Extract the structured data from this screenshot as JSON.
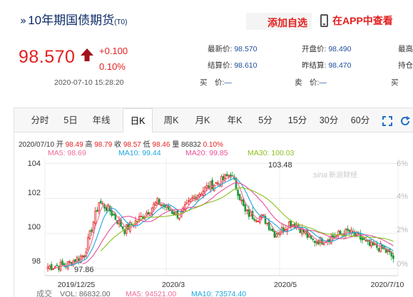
{
  "header": {
    "title": "10年期国债期货",
    "code": "(T0)",
    "add_favorite": "添加自选",
    "app_view": "在APP中查看"
  },
  "quote": {
    "price": "98.570",
    "change": "+0.100",
    "change_pct": "0.10%",
    "timestamp": "2020-07-10 15:28:20",
    "latest_label": "最新价:",
    "latest_value": "98.570",
    "settle_label": "结算价:",
    "settle_value": "98.610",
    "open_label": "开盘价:",
    "open_value": "98.490",
    "prev_settle_label": "昨结算:",
    "prev_settle_value": "98.470",
    "bid_label": "买　价:",
    "bid_value": "—",
    "ask_label": "卖　价:",
    "ask_value": "—",
    "high_label": "最高",
    "hold_label": "持仓",
    "buy_vol_label": "买",
    "sell_vol_label": "卖",
    "accent": "#e31f1f"
  },
  "tabs": [
    {
      "label": "分时",
      "active": false
    },
    {
      "label": "5日",
      "active": false
    },
    {
      "label": "年线",
      "active": false
    },
    {
      "label": "日K",
      "active": true
    },
    {
      "label": "周K",
      "active": false
    },
    {
      "label": "月K",
      "active": false
    },
    {
      "label": "年K",
      "active": false
    },
    {
      "label": "5分",
      "active": false
    },
    {
      "label": "15分",
      "active": false
    },
    {
      "label": "30分",
      "active": false
    },
    {
      "label": "60分",
      "active": false
    }
  ],
  "ohlc": {
    "date": "2020/07/10",
    "open_label": "开",
    "open": "98.49",
    "high_label": "高",
    "high": "98.79",
    "close_label": "收",
    "close": "98.57",
    "low_label": "低",
    "low": "98.46",
    "volume_label": "量",
    "volume": "86832",
    "pct": "0.10%"
  },
  "ma": [
    {
      "label": "MA5: 98.69",
      "color": "#ee6b9a"
    },
    {
      "label": "MA10: 99.44",
      "color": "#1ba6df"
    },
    {
      "label": "MA20: 99.85",
      "color": "#e84f9a"
    },
    {
      "label": "MA30: 100.03",
      "color": "#8cbf1e"
    }
  ],
  "volume_bar": {
    "label": "成交",
    "vol": "VOL: 86832.00",
    "ma5": "MA5: 94521.00",
    "ma10": "MA10: 73574.40"
  },
  "watermark": "新浪财经",
  "chart_data": {
    "type": "candlestick",
    "y_ticks": [
      "104",
      "102",
      "100",
      "98"
    ],
    "y_right_ticks": [
      "6%",
      "4%",
      "2%",
      "0%"
    ],
    "x_ticks": [
      "2019/12/25",
      "2020/3",
      "2020/5",
      "2020/7/10"
    ],
    "ylim": [
      97.6,
      104.3
    ],
    "high_annotation": "103.48",
    "low_annotation": "97.86",
    "colors": {
      "up": "#e31f1f",
      "down": "#1f9a37"
    }
  }
}
